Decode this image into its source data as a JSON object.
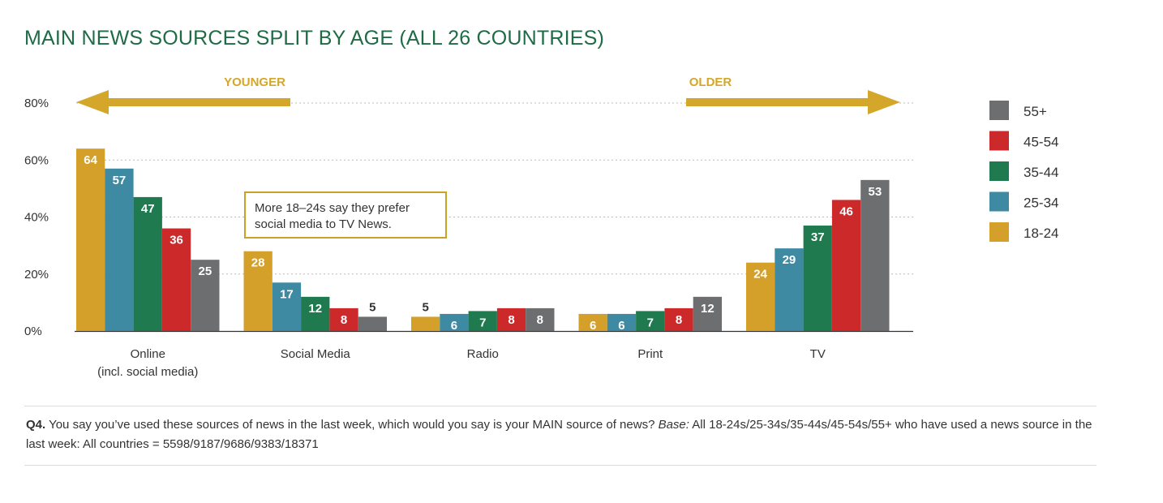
{
  "title": "MAIN NEWS SOURCES SPLIT BY AGE (ALL 26 COUNTRIES)",
  "arrows": {
    "left_label": "YOUNGER",
    "right_label": "OLDER",
    "color": "#d4a62a"
  },
  "callout": {
    "line1": "More 18–24s say they prefer",
    "line2": "social media to TV News.",
    "border_color": "#c9a227"
  },
  "footnote": {
    "q_label": "Q4.",
    "q_text": " You say you’ve used these sources of news in the last week, which would you say is your MAIN source of news? ",
    "base_label": "Base:",
    "base_text": " All 18-24s/25-34s/35-44s/45-54s/55+ who have used a news source in the last week: All countries = 5598/9187/9686/9383/18371"
  },
  "chart_data": {
    "type": "bar",
    "title": "MAIN NEWS SOURCES SPLIT BY AGE (ALL 26 COUNTRIES)",
    "xlabel": "",
    "ylabel": "",
    "ylim": [
      0,
      80
    ],
    "y_ticks": [
      "0%",
      "20%",
      "40%",
      "60%",
      "80%"
    ],
    "grid": true,
    "legend_position": "right",
    "categories": [
      {
        "line1": "Online",
        "line2": "(incl. social media)"
      },
      {
        "line1": "Social Media",
        "line2": ""
      },
      {
        "line1": "Radio",
        "line2": ""
      },
      {
        "line1": "Print",
        "line2": ""
      },
      {
        "line1": "TV",
        "line2": ""
      }
    ],
    "series": [
      {
        "name": "18-24",
        "color": "#d4a02a",
        "values": [
          64,
          28,
          5,
          6,
          24
        ]
      },
      {
        "name": "25-34",
        "color": "#3f8aa3",
        "values": [
          57,
          17,
          6,
          6,
          29
        ]
      },
      {
        "name": "35-44",
        "color": "#1f7a4f",
        "values": [
          47,
          12,
          7,
          7,
          37
        ]
      },
      {
        "name": "45-54",
        "color": "#cc2a2a",
        "values": [
          36,
          8,
          8,
          8,
          46
        ]
      },
      {
        "name": "55+",
        "color": "#6d6e70",
        "values": [
          25,
          5,
          8,
          12,
          53
        ]
      }
    ],
    "legend_order": [
      "55+",
      "45-54",
      "35-44",
      "25-34",
      "18-24"
    ]
  }
}
